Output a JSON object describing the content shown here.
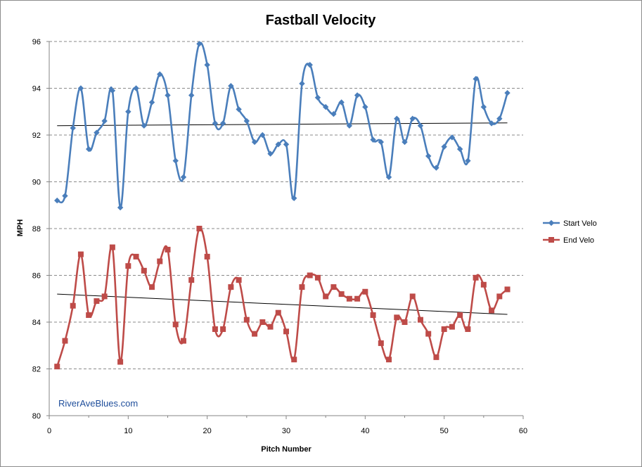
{
  "chart_data": {
    "type": "line",
    "title": "Fastball Velocity",
    "xlabel": "Pitch Number",
    "ylabel": "MPH",
    "xlim": [
      0,
      60
    ],
    "ylim": [
      80,
      96
    ],
    "x_ticks": [
      "0",
      "10",
      "20",
      "30",
      "40",
      "50",
      "60"
    ],
    "y_ticks": [
      "80",
      "82",
      "84",
      "86",
      "88",
      "90",
      "92",
      "94",
      "96"
    ],
    "grid": "horizontal dashed",
    "legend_position": "right",
    "watermark": "RiverAveBlues.com",
    "x": [
      1,
      2,
      3,
      4,
      5,
      6,
      7,
      8,
      9,
      10,
      11,
      12,
      13,
      14,
      15,
      16,
      17,
      18,
      19,
      20,
      21,
      22,
      23,
      24,
      25,
      26,
      27,
      28,
      29,
      30,
      31,
      32,
      33,
      34,
      35,
      36,
      37,
      38,
      39,
      40,
      41,
      42,
      43,
      44,
      45,
      46,
      47,
      48,
      49,
      50,
      51,
      52,
      53,
      54,
      55,
      56,
      57,
      58
    ],
    "series": [
      {
        "name": "Start Velo",
        "color": "#4a7ebb",
        "marker": "diamond",
        "values": [
          89.2,
          89.4,
          92.3,
          94.0,
          91.4,
          92.1,
          92.6,
          93.9,
          88.9,
          93.0,
          94.0,
          92.4,
          93.4,
          94.6,
          93.7,
          90.9,
          90.2,
          93.7,
          95.9,
          95.0,
          92.5,
          92.5,
          94.1,
          93.1,
          92.6,
          91.7,
          92.0,
          91.2,
          91.6,
          91.6,
          89.3,
          94.2,
          95.0,
          93.6,
          93.2,
          92.9,
          93.4,
          92.4,
          93.7,
          93.2,
          91.8,
          91.7,
          90.2,
          92.7,
          91.7,
          92.7,
          92.4,
          91.1,
          90.6,
          91.5,
          91.9,
          91.4,
          90.9,
          94.4,
          93.2,
          92.5,
          92.7,
          93.8
        ],
        "trend": [
          92.4,
          92.52
        ]
      },
      {
        "name": "End Velo",
        "color": "#be4b48",
        "marker": "square",
        "values": [
          82.1,
          83.2,
          84.7,
          86.9,
          84.3,
          84.9,
          85.1,
          87.2,
          82.3,
          86.4,
          86.8,
          86.2,
          85.5,
          86.6,
          87.1,
          83.9,
          83.2,
          85.8,
          88.0,
          86.8,
          83.7,
          83.7,
          85.5,
          85.8,
          84.1,
          83.5,
          84.0,
          83.8,
          84.4,
          83.6,
          82.4,
          85.5,
          86.0,
          85.9,
          85.1,
          85.5,
          85.2,
          85.0,
          85.0,
          85.3,
          84.3,
          83.1,
          82.4,
          84.2,
          84.0,
          85.1,
          84.1,
          83.5,
          82.5,
          83.7,
          83.8,
          84.3,
          83.7,
          85.9,
          85.6,
          84.5,
          85.1,
          85.4
        ],
        "trend": [
          85.2,
          84.33
        ]
      }
    ]
  }
}
